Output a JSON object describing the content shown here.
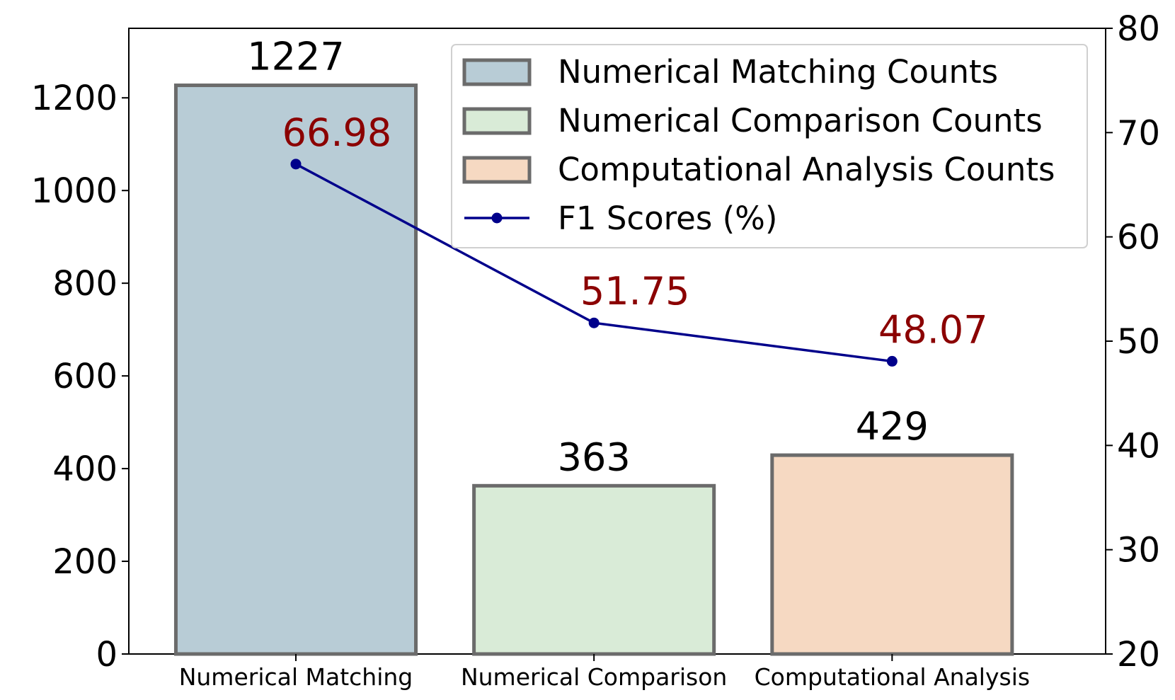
{
  "chart_data": {
    "type": "bar",
    "categories": [
      "Numerical Matching",
      "Numerical Comparison",
      "Computational Analysis"
    ],
    "values": [
      1227,
      363,
      429
    ],
    "value_labels": [
      "1227",
      "363",
      "429"
    ],
    "bar_colors": [
      "#b8ccd6",
      "#d9ebd7",
      "#f6d9c2"
    ],
    "bar_edge_color": "#6b6b6b",
    "ylim": [
      0,
      1350
    ],
    "yticks": [
      0,
      200,
      400,
      600,
      800,
      1000,
      1200
    ],
    "ytick_labels": [
      "0",
      "200",
      "400",
      "600",
      "800",
      "1000",
      "1200"
    ],
    "y2lim": [
      20,
      80
    ],
    "y2ticks": [
      20,
      30,
      40,
      50,
      60,
      70,
      80
    ],
    "y2tick_labels": [
      "20",
      "30",
      "40",
      "50",
      "60",
      "70",
      "80"
    ],
    "line": {
      "name": "F1 Scores (%)",
      "values": [
        66.98,
        51.75,
        48.07
      ],
      "value_labels": [
        "66.98",
        "51.75",
        "48.07"
      ],
      "color": "#00008b",
      "label_color": "#8b0000"
    },
    "legend": {
      "placement": "top-right",
      "entries": [
        {
          "label": "Numerical Matching Counts",
          "kind": "bar",
          "color": "#b8ccd6"
        },
        {
          "label": "Numerical Comparison Counts",
          "kind": "bar",
          "color": "#d9ebd7"
        },
        {
          "label": "Computational Analysis Counts",
          "kind": "bar",
          "color": "#f6d9c2"
        },
        {
          "label": "F1 Scores (%)",
          "kind": "line",
          "color": "#00008b"
        }
      ]
    },
    "title": "",
    "xlabel": "",
    "ylabel": "",
    "y2label": "",
    "grid": false
  }
}
